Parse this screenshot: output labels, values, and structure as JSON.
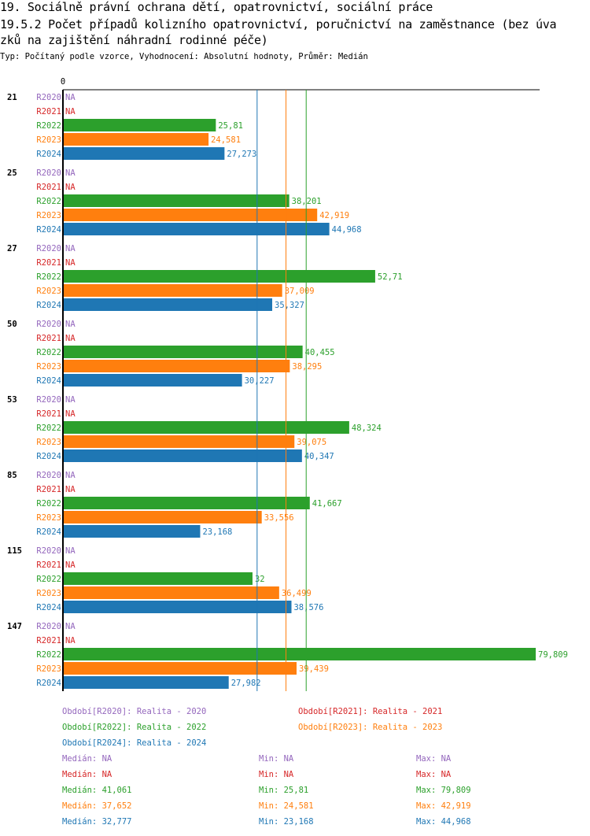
{
  "title_line1": "19. Sociálně právní ochrana dětí, opatrovnictví, sociální práce",
  "title_line2": "19.5.2 Počet případů kolizního opatrovnictví, poručnictví na zaměstnance (bez úva",
  "title_line3": "zků na zajištění náhradní rodinné péče)",
  "subtitle": "Typ: Počítaný podle vzorce, Vyhodnocení: Absolutní hodnoty, Průměr: Medián",
  "chart_data": {
    "type": "bar",
    "orientation": "horizontal",
    "xlim": [
      0,
      80
    ],
    "x_tick_labels": [
      "0"
    ],
    "categories": [
      "21",
      "25",
      "27",
      "50",
      "53",
      "85",
      "115",
      "147"
    ],
    "series": [
      {
        "name": "R2020",
        "color": "#9467bd",
        "values": [
          null,
          null,
          null,
          null,
          null,
          null,
          null,
          null
        ],
        "labels": [
          "NA",
          "NA",
          "NA",
          "NA",
          "NA",
          "NA",
          "NA",
          "NA"
        ]
      },
      {
        "name": "R2021",
        "color": "#d62728",
        "values": [
          null,
          null,
          null,
          null,
          null,
          null,
          null,
          null
        ],
        "labels": [
          "NA",
          "NA",
          "NA",
          "NA",
          "NA",
          "NA",
          "NA",
          "NA"
        ]
      },
      {
        "name": "R2022",
        "color": "#2ca02c",
        "values": [
          25.81,
          38.201,
          52.71,
          40.455,
          48.324,
          41.667,
          32,
          79.809
        ],
        "labels": [
          "25,81",
          "38,201",
          "52,71",
          "40,455",
          "48,324",
          "41,667",
          "32",
          "79,809"
        ]
      },
      {
        "name": "R2023",
        "color": "#ff7f0e",
        "values": [
          24.581,
          42.919,
          37.009,
          38.295,
          39.075,
          33.556,
          36.499,
          39.439
        ],
        "labels": [
          "24,581",
          "42,919",
          "37,009",
          "38,295",
          "39,075",
          "33,556",
          "36,499",
          "39,439"
        ]
      },
      {
        "name": "R2024",
        "color": "#1f77b4",
        "values": [
          27.273,
          44.968,
          35.327,
          30.227,
          40.347,
          23.168,
          38.576,
          27.982
        ],
        "labels": [
          "27,273",
          "44,968",
          "35,327",
          "30,227",
          "40,347",
          "23,168",
          "38,576",
          "27,982"
        ]
      }
    ],
    "median_lines": [
      {
        "series": "R2022",
        "value": 41.061
      },
      {
        "series": "R2023",
        "value": 37.652
      },
      {
        "series": "R2024",
        "value": 32.777
      }
    ]
  },
  "legend": [
    {
      "text": "Období[R2020]: Realita - 2020",
      "color": "#9467bd"
    },
    {
      "text": "Období[R2021]: Realita - 2021",
      "color": "#d62728"
    },
    {
      "text": "Období[R2022]: Realita - 2022",
      "color": "#2ca02c"
    },
    {
      "text": "Období[R2023]: Realita - 2023",
      "color": "#ff7f0e"
    },
    {
      "text": "Období[R2024]: Realita - 2024",
      "color": "#1f77b4"
    }
  ],
  "stats": [
    {
      "median": "Medián: NA",
      "min": "Min: NA",
      "max": "Max: NA",
      "color": "#9467bd"
    },
    {
      "median": "Medián: NA",
      "min": "Min: NA",
      "max": "Max: NA",
      "color": "#d62728"
    },
    {
      "median": "Medián: 41,061",
      "min": "Min: 25,81",
      "max": "Max: 79,809",
      "color": "#2ca02c"
    },
    {
      "median": "Medián: 37,652",
      "min": "Min: 24,581",
      "max": "Max: 42,919",
      "color": "#ff7f0e"
    },
    {
      "median": "Medián: 32,777",
      "min": "Min: 23,168",
      "max": "Max: 44,968",
      "color": "#1f77b4"
    }
  ]
}
